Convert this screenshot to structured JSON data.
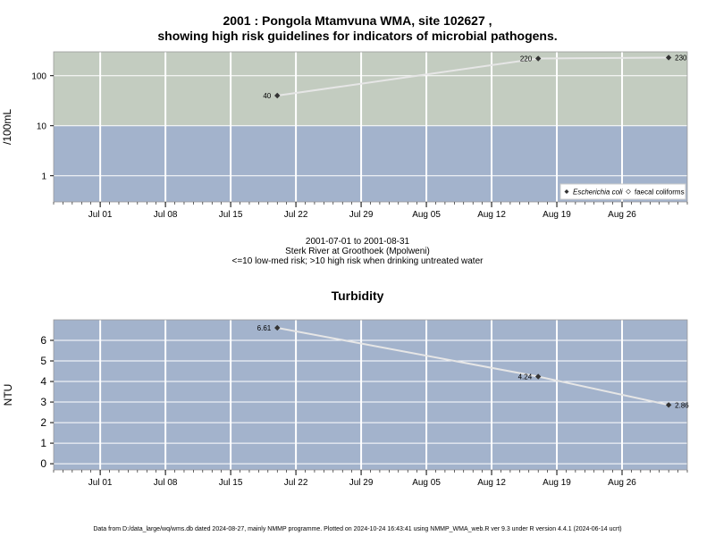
{
  "titles": {
    "main_line1": "2001 : Pongola Mtamvuna WMA, site 102627 ,",
    "main_line2": "showing high risk guidelines for indicators of microbial pathogens.",
    "turbidity": "Turbidity"
  },
  "caption": {
    "range": "2001-07-01 to 2001-08-31",
    "site": "Sterk River at Groothoek (Mpolweni)",
    "guideline": "<=10 low-med risk; >10 high risk when drinking untreated water"
  },
  "footer": "Data from D:/data_large/wq/wms.db dated 2024-08-27, mainly NMMP programme. Plotted on 2024-10-24 16:43:41 using NMMP_WMA_web.R ver 9.3 under R version 4.4.1 (2024-06-14 ucrt)",
  "colors": {
    "high_risk_band": "#c3ccc0",
    "low_risk_band": "#a3b3cc",
    "grid": "#ffffff",
    "line": "#e6e6e6",
    "point": "#333333"
  },
  "chart_data": [
    {
      "type": "line",
      "title": "",
      "ylabel": "/100mL",
      "yscale": "log",
      "ylim": [
        0.3,
        300
      ],
      "yticks": [
        1,
        10,
        100
      ],
      "ytick_labels": [
        "1",
        "10",
        "100"
      ],
      "xlim": [
        "2001-06-26",
        "2001-09-02"
      ],
      "xticks": [
        "2001-07-01",
        "2001-07-08",
        "2001-07-15",
        "2001-07-22",
        "2001-07-29",
        "2001-08-05",
        "2001-08-12",
        "2001-08-19",
        "2001-08-26"
      ],
      "xtick_labels": [
        "Jul 01",
        "Jul 08",
        "Jul 15",
        "Jul 22",
        "Jul 29",
        "Aug 05",
        "Aug 12",
        "Aug 19",
        "Aug 26"
      ],
      "bands": [
        {
          "from": 10,
          "to": 300,
          "color": "#c3ccc0"
        },
        {
          "from": 0.3,
          "to": 10,
          "color": "#a3b3cc"
        }
      ],
      "legend": [
        "Escherichia coli",
        "faecal coliforms"
      ],
      "legend_position": "bottom-right",
      "series": [
        {
          "name": "Escherichia coli",
          "x": [
            "2001-07-20",
            "2001-08-17",
            "2001-08-31"
          ],
          "values": [
            40,
            220,
            230
          ],
          "labels": [
            "40",
            "220",
            "230"
          ]
        }
      ]
    },
    {
      "type": "line",
      "title": "Turbidity",
      "ylabel": "NTU",
      "yscale": "linear",
      "ylim": [
        -0.3,
        7.0
      ],
      "yticks": [
        0,
        1,
        2,
        3,
        4,
        5,
        6
      ],
      "ytick_labels": [
        "0",
        "1",
        "2",
        "3",
        "4",
        "5",
        "6"
      ],
      "xlim": [
        "2001-06-26",
        "2001-09-02"
      ],
      "xticks": [
        "2001-07-01",
        "2001-07-08",
        "2001-07-15",
        "2001-07-22",
        "2001-07-29",
        "2001-08-05",
        "2001-08-12",
        "2001-08-19",
        "2001-08-26"
      ],
      "xtick_labels": [
        "Jul 01",
        "Jul 08",
        "Jul 15",
        "Jul 22",
        "Jul 29",
        "Aug 05",
        "Aug 12",
        "Aug 19",
        "Aug 26"
      ],
      "series": [
        {
          "x": [
            "2001-07-20",
            "2001-08-17",
            "2001-08-31"
          ],
          "values": [
            6.61,
            4.24,
            2.86
          ],
          "labels": [
            "6.61",
            "4.24",
            "2.86"
          ]
        }
      ]
    }
  ]
}
